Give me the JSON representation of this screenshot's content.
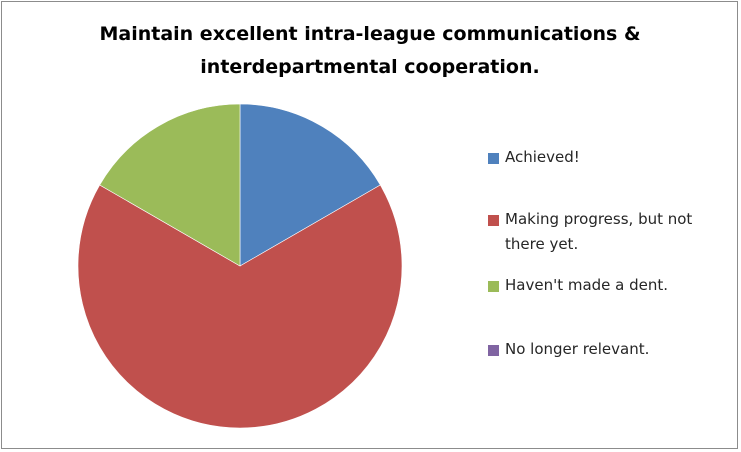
{
  "chart_data": {
    "type": "pie",
    "title": "Maintain excellent intra-league communications & interdepartmental cooperation.",
    "title_lines": [
      "Maintain excellent intra-league communications &",
      "interdepartmental cooperation."
    ],
    "categories": [
      "Achieved!",
      "Making progress, but not there yet.",
      "Haven't made a dent.",
      "No longer relevant."
    ],
    "values": [
      1,
      4,
      1,
      0
    ],
    "colors": [
      "#4f81bd",
      "#c0504d",
      "#9bbb59",
      "#8064a2"
    ],
    "legend_position": "right"
  }
}
